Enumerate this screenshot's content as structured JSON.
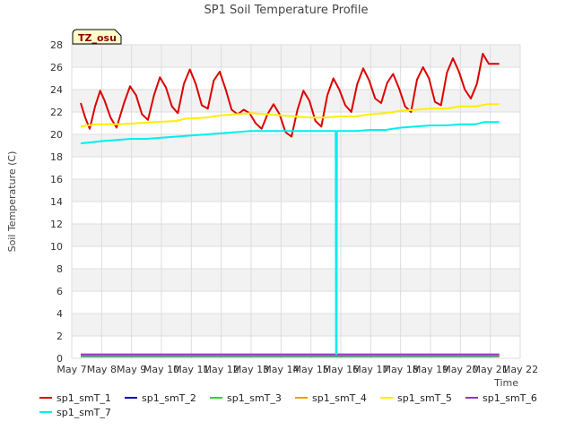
{
  "chart_data": {
    "type": "line",
    "title": "SP1 Soil Temperature Profile",
    "xlabel": "Time",
    "ylabel": "Soil Temperature (C)",
    "badge": "TZ_osu",
    "ylim": [
      0,
      28
    ],
    "yticks": [
      "0",
      "2",
      "4",
      "6",
      "8",
      "10",
      "12",
      "14",
      "16",
      "18",
      "20",
      "22",
      "24",
      "26",
      "28"
    ],
    "xlim": [
      "May 7",
      "May 22"
    ],
    "xticks": [
      "May 7",
      "May 8",
      "May 9",
      "May 10",
      "May 11",
      "May 12",
      "May 13",
      "May 14",
      "May 15",
      "May 16",
      "May 17",
      "May 18",
      "May 19",
      "May 20",
      "May 21",
      "May 22"
    ],
    "grid": true,
    "background_bands": [
      "#f2f2f2",
      "#ffffff"
    ],
    "legend_position": "bottom",
    "series": [
      {
        "name": "sp1_smT_1",
        "color": "#dd0000",
        "x": [
          7.3,
          7.45,
          7.6,
          7.78,
          7.95,
          8.1,
          8.3,
          8.5,
          8.75,
          8.95,
          9.15,
          9.35,
          9.55,
          9.75,
          9.95,
          10.15,
          10.35,
          10.55,
          10.75,
          10.95,
          11.15,
          11.35,
          11.55,
          11.75,
          11.95,
          12.15,
          12.35,
          12.55,
          12.75,
          12.95,
          13.15,
          13.35,
          13.55,
          13.75,
          13.95,
          14.15,
          14.35,
          14.55,
          14.75,
          14.95,
          15.15,
          15.35,
          15.55,
          15.75,
          15.95,
          16.15,
          16.35,
          16.55,
          16.75,
          16.95,
          17.15,
          17.35,
          17.55,
          17.75,
          17.95,
          18.15,
          18.35,
          18.55,
          18.75,
          18.95,
          19.15,
          19.35,
          19.55,
          19.75,
          19.95,
          20.15,
          20.35,
          20.55,
          20.75,
          20.95,
          21.1,
          21.3
        ],
        "y": [
          22.8,
          21.5,
          20.5,
          22.5,
          23.9,
          23.0,
          21.5,
          20.6,
          22.8,
          24.3,
          23.5,
          21.8,
          21.3,
          23.5,
          25.1,
          24.2,
          22.5,
          21.9,
          24.5,
          25.8,
          24.5,
          22.6,
          22.3,
          24.8,
          25.6,
          24.0,
          22.2,
          21.8,
          22.2,
          21.9,
          21.0,
          20.5,
          21.8,
          22.7,
          21.8,
          20.2,
          19.8,
          22.2,
          23.9,
          23.0,
          21.2,
          20.7,
          23.5,
          25.0,
          24.0,
          22.6,
          22.0,
          24.5,
          25.9,
          24.8,
          23.2,
          22.8,
          24.6,
          25.4,
          24.1,
          22.5,
          22.0,
          24.9,
          26.0,
          25.0,
          22.9,
          22.6,
          25.5,
          26.8,
          25.6,
          24.0,
          23.2,
          24.5,
          27.2,
          26.3,
          26.3,
          26.3
        ]
      },
      {
        "name": "sp1_smT_2",
        "color": "#0000bb",
        "x": [
          7.3,
          21.3
        ],
        "y": [
          0.2,
          0.2
        ]
      },
      {
        "name": "sp1_smT_3",
        "color": "#22dd22",
        "x": [
          7.3,
          21.3
        ],
        "y": [
          0.25,
          0.25
        ]
      },
      {
        "name": "sp1_smT_4",
        "color": "#ff9900",
        "x": [
          7.3,
          21.3
        ],
        "y": [
          0.3,
          0.3
        ]
      },
      {
        "name": "sp1_smT_5",
        "color": "#ffee00",
        "x": [
          7.3,
          7.8,
          8.5,
          9.2,
          9.8,
          10.5,
          10.8,
          11.5,
          12.0,
          12.5,
          13.0,
          13.5,
          14.0,
          14.5,
          15.0,
          15.5,
          15.9,
          16.5,
          17.0,
          17.5,
          18.0,
          18.5,
          19.0,
          19.5,
          20.0,
          20.5,
          20.9,
          21.3
        ],
        "y": [
          20.7,
          20.9,
          20.9,
          21.0,
          21.1,
          21.2,
          21.4,
          21.5,
          21.7,
          21.8,
          21.9,
          21.8,
          21.7,
          21.6,
          21.5,
          21.5,
          21.6,
          21.6,
          21.8,
          21.9,
          22.1,
          22.2,
          22.3,
          22.3,
          22.5,
          22.5,
          22.7,
          22.7
        ]
      },
      {
        "name": "sp1_smT_6",
        "color": "#9933cc",
        "x": [
          7.3,
          21.3
        ],
        "y": [
          0.35,
          0.35
        ]
      },
      {
        "name": "sp1_smT_7",
        "color": "#00eeee",
        "x": [
          7.3,
          7.7,
          8.0,
          8.5,
          9.0,
          9.5,
          10.0,
          10.5,
          11.0,
          11.5,
          12.0,
          12.5,
          13.0,
          13.5,
          14.0,
          14.5,
          15.0,
          15.5,
          15.83,
          15.84,
          15.86,
          15.87,
          16.5,
          17.0,
          17.5,
          18.0,
          18.5,
          19.0,
          19.5,
          20.0,
          20.5,
          20.8,
          21.3
        ],
        "y": [
          19.2,
          19.3,
          19.4,
          19.5,
          19.6,
          19.6,
          19.7,
          19.8,
          19.9,
          20.0,
          20.1,
          20.2,
          20.3,
          20.3,
          20.3,
          20.3,
          20.3,
          20.3,
          20.3,
          0.4,
          0.4,
          20.3,
          20.3,
          20.4,
          20.4,
          20.6,
          20.7,
          20.8,
          20.8,
          20.9,
          20.9,
          21.1,
          21.1
        ]
      }
    ]
  }
}
